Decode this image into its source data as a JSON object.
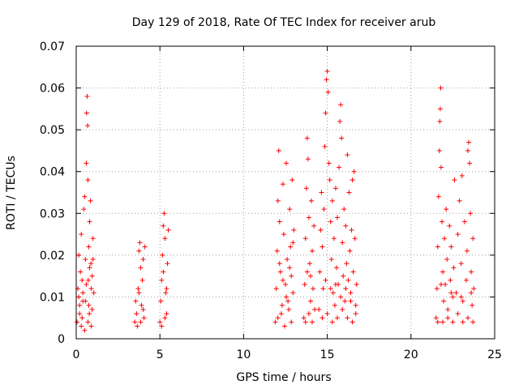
{
  "chart_data": {
    "type": "scatter",
    "title": "Day 129 of 2018, Rate Of TEC Index for receiver arub",
    "xlabel": "GPS time / hours",
    "ylabel": "ROTI / TECUs",
    "xlim": [
      0,
      25
    ],
    "ylim": [
      0,
      0.07
    ],
    "xticks": [
      0,
      5,
      10,
      15,
      20,
      25
    ],
    "xtick_labels": [
      "0",
      "5",
      "10",
      "15",
      "20",
      "25"
    ],
    "yticks": [
      0,
      0.01,
      0.02,
      0.03,
      0.04,
      0.05,
      0.06,
      0.07
    ],
    "ytick_labels": [
      "0",
      "0.01",
      "0.02",
      "0.03",
      "0.04",
      "0.05",
      "0.06",
      "0.07"
    ],
    "grid": true,
    "marker": "+",
    "color": "#ff0000",
    "series": [
      {
        "points": [
          [
            0.05,
            0.004
          ],
          [
            0.1,
            0.012
          ],
          [
            0.15,
            0.02
          ],
          [
            0.2,
            0.008
          ],
          [
            0.25,
            0.016
          ],
          [
            0.3,
            0.025
          ],
          [
            0.35,
            0.005
          ],
          [
            0.4,
            0.011
          ],
          [
            0.45,
            0.031
          ],
          [
            0.5,
            0.034
          ],
          [
            0.55,
            0.009
          ],
          [
            0.6,
            0.042
          ],
          [
            0.62,
            0.054
          ],
          [
            0.65,
            0.058
          ],
          [
            0.68,
            0.051
          ],
          [
            0.7,
            0.038
          ],
          [
            0.72,
            0.014
          ],
          [
            0.75,
            0.022
          ],
          [
            0.78,
            0.006
          ],
          [
            0.8,
            0.028
          ],
          [
            0.85,
            0.033
          ],
          [
            0.88,
            0.018
          ],
          [
            0.9,
            0.012
          ],
          [
            0.95,
            0.007
          ],
          [
            1.0,
            0.019
          ],
          [
            1.05,
            0.011
          ],
          [
            0.3,
            0.003
          ],
          [
            0.5,
            0.002
          ],
          [
            0.7,
            0.004
          ],
          [
            0.9,
            0.003
          ],
          [
            0.2,
            0.006
          ],
          [
            0.4,
            0.009
          ],
          [
            0.6,
            0.013
          ],
          [
            0.8,
            0.017
          ],
          [
            1.0,
            0.024
          ],
          [
            0.15,
            0.01
          ],
          [
            0.35,
            0.014
          ],
          [
            0.55,
            0.019
          ],
          [
            0.75,
            0.008
          ],
          [
            0.95,
            0.015
          ],
          [
            3.5,
            0.004
          ],
          [
            3.55,
            0.009
          ],
          [
            3.6,
            0.006
          ],
          [
            3.7,
            0.012
          ],
          [
            3.75,
            0.021
          ],
          [
            3.8,
            0.023
          ],
          [
            3.85,
            0.017
          ],
          [
            3.9,
            0.008
          ],
          [
            3.95,
            0.014
          ],
          [
            4.0,
            0.019
          ],
          [
            4.05,
            0.005
          ],
          [
            4.1,
            0.022
          ],
          [
            3.65,
            0.003
          ],
          [
            3.85,
            0.004
          ],
          [
            4.0,
            0.007
          ],
          [
            3.75,
            0.011
          ],
          [
            5.0,
            0.004
          ],
          [
            5.05,
            0.009
          ],
          [
            5.1,
            0.014
          ],
          [
            5.15,
            0.02
          ],
          [
            5.2,
            0.027
          ],
          [
            5.25,
            0.03
          ],
          [
            5.3,
            0.024
          ],
          [
            5.35,
            0.011
          ],
          [
            5.4,
            0.006
          ],
          [
            5.45,
            0.018
          ],
          [
            5.5,
            0.026
          ],
          [
            5.1,
            0.003
          ],
          [
            5.3,
            0.005
          ],
          [
            5.2,
            0.016
          ],
          [
            5.4,
            0.012
          ],
          [
            11.9,
            0.004
          ],
          [
            11.95,
            0.012
          ],
          [
            12.0,
            0.021
          ],
          [
            12.05,
            0.033
          ],
          [
            12.1,
            0.045
          ],
          [
            12.15,
            0.028
          ],
          [
            12.2,
            0.016
          ],
          [
            12.3,
            0.008
          ],
          [
            12.35,
            0.037
          ],
          [
            12.4,
            0.025
          ],
          [
            12.5,
            0.013
          ],
          [
            12.55,
            0.042
          ],
          [
            12.6,
            0.019
          ],
          [
            12.7,
            0.007
          ],
          [
            12.75,
            0.031
          ],
          [
            12.8,
            0.022
          ],
          [
            12.85,
            0.015
          ],
          [
            12.9,
            0.038
          ],
          [
            12.95,
            0.011
          ],
          [
            13.0,
            0.026
          ],
          [
            12.05,
            0.005
          ],
          [
            12.25,
            0.006
          ],
          [
            12.45,
            0.003
          ],
          [
            12.65,
            0.009
          ],
          [
            12.85,
            0.004
          ],
          [
            12.15,
            0.018
          ],
          [
            12.35,
            0.014
          ],
          [
            12.55,
            0.01
          ],
          [
            12.75,
            0.017
          ],
          [
            12.95,
            0.023
          ],
          [
            13.6,
            0.005
          ],
          [
            13.65,
            0.013
          ],
          [
            13.7,
            0.024
          ],
          [
            13.75,
            0.036
          ],
          [
            13.8,
            0.048
          ],
          [
            13.85,
            0.043
          ],
          [
            13.9,
            0.029
          ],
          [
            13.95,
            0.018
          ],
          [
            14.0,
            0.009
          ],
          [
            14.05,
            0.033
          ],
          [
            14.1,
            0.021
          ],
          [
            14.15,
            0.012
          ],
          [
            14.2,
            0.027
          ],
          [
            14.25,
            0.007
          ],
          [
            13.7,
            0.004
          ],
          [
            13.9,
            0.006
          ],
          [
            14.1,
            0.004
          ],
          [
            13.8,
            0.016
          ],
          [
            14.0,
            0.015
          ],
          [
            14.5,
            0.007
          ],
          [
            14.55,
            0.016
          ],
          [
            14.6,
            0.026
          ],
          [
            14.65,
            0.035
          ],
          [
            14.7,
            0.022
          ],
          [
            14.75,
            0.012
          ],
          [
            14.8,
            0.031
          ],
          [
            14.85,
            0.046
          ],
          [
            14.9,
            0.054
          ],
          [
            14.95,
            0.062
          ],
          [
            15.0,
            0.064
          ],
          [
            15.05,
            0.059
          ],
          [
            15.1,
            0.042
          ],
          [
            15.15,
            0.038
          ],
          [
            15.2,
            0.028
          ],
          [
            15.25,
            0.019
          ],
          [
            15.3,
            0.033
          ],
          [
            15.35,
            0.011
          ],
          [
            15.4,
            0.024
          ],
          [
            15.45,
            0.008
          ],
          [
            15.5,
            0.036
          ],
          [
            15.55,
            0.017
          ],
          [
            15.6,
            0.029
          ],
          [
            15.65,
            0.013
          ],
          [
            15.7,
            0.041
          ],
          [
            15.75,
            0.052
          ],
          [
            15.8,
            0.056
          ],
          [
            15.85,
            0.048
          ],
          [
            15.9,
            0.023
          ],
          [
            15.95,
            0.015
          ],
          [
            16.0,
            0.031
          ],
          [
            16.05,
            0.009
          ],
          [
            16.1,
            0.027
          ],
          [
            16.15,
            0.018
          ],
          [
            16.2,
            0.044
          ],
          [
            16.25,
            0.014
          ],
          [
            16.3,
            0.035
          ],
          [
            16.35,
            0.021
          ],
          [
            16.4,
            0.011
          ],
          [
            16.45,
            0.026
          ],
          [
            16.5,
            0.038
          ],
          [
            16.55,
            0.016
          ],
          [
            16.6,
            0.04
          ],
          [
            16.65,
            0.024
          ],
          [
            16.7,
            0.008
          ],
          [
            16.75,
            0.013
          ],
          [
            14.7,
            0.005
          ],
          [
            15.0,
            0.006
          ],
          [
            15.3,
            0.004
          ],
          [
            15.6,
            0.005
          ],
          [
            15.9,
            0.007
          ],
          [
            16.2,
            0.005
          ],
          [
            16.5,
            0.004
          ],
          [
            16.7,
            0.006
          ],
          [
            14.9,
            0.014
          ],
          [
            15.2,
            0.012
          ],
          [
            15.5,
            0.013
          ],
          [
            15.8,
            0.01
          ],
          [
            16.1,
            0.012
          ],
          [
            16.4,
            0.009
          ],
          [
            21.5,
            0.005
          ],
          [
            21.55,
            0.012
          ],
          [
            21.6,
            0.022
          ],
          [
            21.65,
            0.034
          ],
          [
            21.7,
            0.045
          ],
          [
            21.72,
            0.052
          ],
          [
            21.75,
            0.055
          ],
          [
            21.78,
            0.06
          ],
          [
            21.8,
            0.041
          ],
          [
            21.85,
            0.028
          ],
          [
            21.9,
            0.016
          ],
          [
            21.95,
            0.009
          ],
          [
            22.0,
            0.024
          ],
          [
            22.05,
            0.013
          ],
          [
            22.1,
            0.031
          ],
          [
            22.15,
            0.019
          ],
          [
            22.2,
            0.007
          ],
          [
            22.3,
            0.027
          ],
          [
            22.35,
            0.014
          ],
          [
            22.4,
            0.022
          ],
          [
            22.5,
            0.01
          ],
          [
            22.55,
            0.017
          ],
          [
            22.6,
            0.038
          ],
          [
            22.7,
            0.011
          ],
          [
            22.8,
            0.025
          ],
          [
            22.9,
            0.033
          ],
          [
            23.0,
            0.018
          ],
          [
            23.05,
            0.039
          ],
          [
            23.1,
            0.009
          ],
          [
            23.2,
            0.028
          ],
          [
            23.3,
            0.014
          ],
          [
            23.35,
            0.021
          ],
          [
            23.4,
            0.045
          ],
          [
            23.45,
            0.047
          ],
          [
            23.5,
            0.042
          ],
          [
            23.55,
            0.03
          ],
          [
            23.6,
            0.016
          ],
          [
            23.65,
            0.008
          ],
          [
            23.7,
            0.024
          ],
          [
            23.75,
            0.012
          ],
          [
            21.6,
            0.004
          ],
          [
            21.9,
            0.004
          ],
          [
            22.2,
            0.005
          ],
          [
            22.5,
            0.004
          ],
          [
            22.8,
            0.006
          ],
          [
            23.1,
            0.004
          ],
          [
            23.4,
            0.005
          ],
          [
            23.7,
            0.004
          ],
          [
            21.8,
            0.013
          ],
          [
            22.4,
            0.011
          ],
          [
            23.0,
            0.01
          ],
          [
            23.6,
            0.011
          ]
        ]
      }
    ]
  }
}
